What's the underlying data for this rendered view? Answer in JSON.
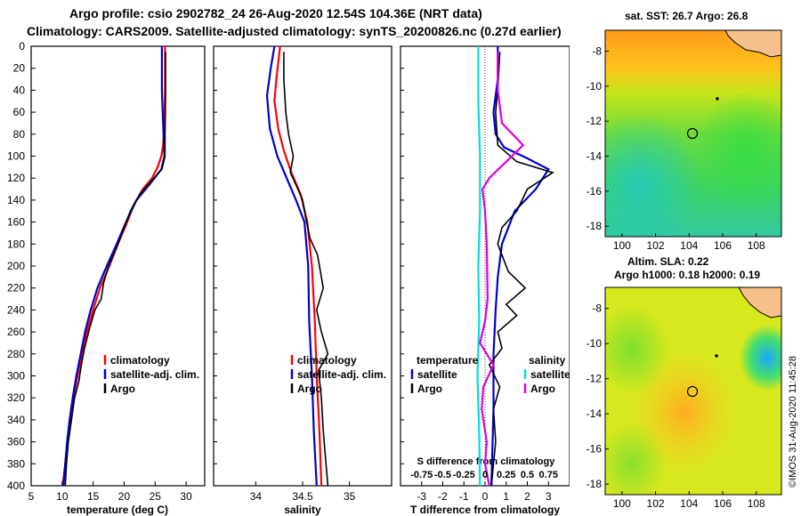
{
  "title_line1": "Argo profile: csio 2902782_24 26-Aug-2020 12.54S 104.36E (NRT data)",
  "title_line2": "Climatology: CARS2009. Satellite-adjusted climatology: synTS_20200826.nc (0.27d earlier)",
  "colors": {
    "climatology": "#ff0000",
    "satellite": "#0000cc",
    "argo": "#000000",
    "sat_diff": "#00dddd",
    "argo_sdiff": "#dd00dd"
  },
  "chart_data": [
    {
      "type": "line",
      "xlabel": "temperature (deg C)",
      "xlim": [
        5,
        33
      ],
      "ylim": [
        400,
        0
      ],
      "xticks": [
        "5",
        "10",
        "15",
        "20",
        "25",
        "30"
      ],
      "yticks": [
        "0",
        "20",
        "40",
        "60",
        "80",
        "100",
        "120",
        "140",
        "160",
        "180",
        "200",
        "220",
        "240",
        "260",
        "280",
        "300",
        "320",
        "340",
        "360",
        "380",
        "400"
      ],
      "legend": [
        "climatology",
        "satellite-adj. clim.",
        "Argo"
      ],
      "series": [
        {
          "name": "climatology",
          "points": [
            [
              26.6,
              0
            ],
            [
              26.6,
              40
            ],
            [
              26.5,
              70
            ],
            [
              26.3,
              90
            ],
            [
              26.0,
              100
            ],
            [
              25.4,
              110
            ],
            [
              24.5,
              120
            ],
            [
              23.0,
              130
            ],
            [
              21.5,
              145
            ],
            [
              20.5,
              160
            ],
            [
              19.0,
              180
            ],
            [
              17.6,
              200
            ],
            [
              16.1,
              220
            ],
            [
              15.0,
              240
            ],
            [
              14.0,
              260
            ],
            [
              13.2,
              280
            ],
            [
              12.5,
              300
            ],
            [
              11.8,
              320
            ],
            [
              11.3,
              340
            ],
            [
              10.9,
              360
            ],
            [
              10.5,
              380
            ],
            [
              10.1,
              400
            ]
          ]
        },
        {
          "name": "satellite-adj. clim.",
          "points": [
            [
              26.1,
              0
            ],
            [
              26.1,
              40
            ],
            [
              26.3,
              70
            ],
            [
              26.5,
              100
            ],
            [
              26.0,
              112
            ],
            [
              24.2,
              125
            ],
            [
              22.0,
              140
            ],
            [
              20.3,
              160
            ],
            [
              18.8,
              180
            ],
            [
              17.2,
              200
            ],
            [
              15.7,
              220
            ],
            [
              14.6,
              240
            ],
            [
              13.7,
              260
            ],
            [
              13.0,
              280
            ],
            [
              12.3,
              300
            ],
            [
              11.7,
              320
            ],
            [
              11.2,
              340
            ],
            [
              10.8,
              360
            ],
            [
              10.5,
              380
            ],
            [
              10.2,
              400
            ]
          ]
        },
        {
          "name": "Argo",
          "points": [
            [
              26.7,
              5
            ],
            [
              26.7,
              40
            ],
            [
              26.6,
              80
            ],
            [
              26.6,
              100
            ],
            [
              26.1,
              112
            ],
            [
              24.0,
              125
            ],
            [
              22.5,
              135
            ],
            [
              21.0,
              150
            ],
            [
              20.0,
              165
            ],
            [
              19.0,
              180
            ],
            [
              17.5,
              200
            ],
            [
              16.7,
              215
            ],
            [
              16.3,
              230
            ],
            [
              15.3,
              240
            ],
            [
              14.5,
              255
            ],
            [
              13.6,
              275
            ],
            [
              13.1,
              290
            ],
            [
              12.7,
              305
            ],
            [
              12.0,
              320
            ],
            [
              11.5,
              340
            ],
            [
              11.0,
              360
            ],
            [
              10.7,
              380
            ],
            [
              10.5,
              400
            ]
          ]
        }
      ]
    },
    {
      "type": "line",
      "xlabel": "salinity",
      "xlim": [
        33.55,
        35.45
      ],
      "ylim": [
        400,
        0
      ],
      "xticks": [
        "34",
        "34.5",
        "35"
      ],
      "legend": [
        "climatology",
        "satellite-adj. clim.",
        "Argo"
      ],
      "series": [
        {
          "name": "climatology",
          "points": [
            [
              34.26,
              0
            ],
            [
              34.22,
              30
            ],
            [
              34.2,
              50
            ],
            [
              34.24,
              75
            ],
            [
              34.3,
              95
            ],
            [
              34.38,
              115
            ],
            [
              34.48,
              135
            ],
            [
              34.55,
              160
            ],
            [
              34.6,
              200
            ],
            [
              34.63,
              250
            ],
            [
              34.65,
              300
            ],
            [
              34.68,
              350
            ],
            [
              34.7,
              400
            ]
          ]
        },
        {
          "name": "satellite-adj. clim.",
          "points": [
            [
              34.2,
              0
            ],
            [
              34.16,
              20
            ],
            [
              34.12,
              45
            ],
            [
              34.15,
              75
            ],
            [
              34.23,
              100
            ],
            [
              34.33,
              120
            ],
            [
              34.43,
              140
            ],
            [
              34.52,
              160
            ],
            [
              34.56,
              200
            ],
            [
              34.57,
              250
            ],
            [
              34.6,
              300
            ],
            [
              34.62,
              350
            ],
            [
              34.65,
              400
            ]
          ]
        },
        {
          "name": "Argo",
          "points": [
            [
              34.3,
              5
            ],
            [
              34.3,
              30
            ],
            [
              34.32,
              60
            ],
            [
              34.35,
              80
            ],
            [
              34.4,
              100
            ],
            [
              34.37,
              115
            ],
            [
              34.45,
              130
            ],
            [
              34.5,
              140
            ],
            [
              34.53,
              155
            ],
            [
              34.58,
              175
            ],
            [
              34.66,
              190
            ],
            [
              34.72,
              220
            ],
            [
              34.65,
              240
            ],
            [
              34.7,
              260
            ],
            [
              34.77,
              280
            ],
            [
              34.67,
              295
            ],
            [
              34.7,
              320
            ],
            [
              34.72,
              350
            ],
            [
              34.75,
              380
            ],
            [
              34.77,
              400
            ]
          ]
        }
      ]
    },
    {
      "type": "line",
      "xlabel": "T difference from climatology",
      "xlim": [
        -4,
        4
      ],
      "ylim": [
        400,
        0
      ],
      "xticks": [
        "-3",
        "-2",
        "-1",
        "0",
        "1",
        "2",
        "3"
      ],
      "top_xlabel": "S difference from climatology",
      "top_xticks": [
        "-0.75",
        "-0.5",
        "-0.25",
        "0",
        "0.25",
        "0.5",
        "0.75"
      ],
      "legend_left_title": "temperature",
      "legend_left": [
        "satellite",
        "Argo"
      ],
      "legend_right_title": "salinity",
      "legend_right": [
        "satellite",
        "Argo"
      ],
      "series": [
        {
          "name": "temperature satellite",
          "points": [
            [
              0.6,
              0
            ],
            [
              0.6,
              30
            ],
            [
              0.4,
              60
            ],
            [
              0.5,
              80
            ],
            [
              0.9,
              92
            ],
            [
              2.0,
              102
            ],
            [
              3.0,
              112
            ],
            [
              2.4,
              130
            ],
            [
              1.4,
              150
            ],
            [
              0.8,
              180
            ],
            [
              0.6,
              210
            ],
            [
              0.5,
              240
            ],
            [
              0.4,
              280
            ],
            [
              0.4,
              330
            ],
            [
              0.3,
              400
            ]
          ]
        },
        {
          "name": "temperature Argo",
          "points": [
            [
              0.7,
              5
            ],
            [
              0.6,
              40
            ],
            [
              0.5,
              60
            ],
            [
              0.6,
              90
            ],
            [
              1.5,
              105
            ],
            [
              3.2,
              115
            ],
            [
              2.0,
              130
            ],
            [
              1.5,
              150
            ],
            [
              0.8,
              165
            ],
            [
              0.6,
              180
            ],
            [
              1.1,
              205
            ],
            [
              1.9,
              220
            ],
            [
              1.0,
              235
            ],
            [
              1.5,
              245
            ],
            [
              0.6,
              260
            ],
            [
              0.8,
              275
            ],
            [
              0.2,
              290
            ],
            [
              0.7,
              310
            ],
            [
              0.4,
              330
            ],
            [
              0.5,
              360
            ],
            [
              0.3,
              400
            ]
          ]
        },
        {
          "name": "salinity satellite",
          "points": [
            [
              -0.08,
              0
            ],
            [
              -0.08,
              50
            ],
            [
              -0.06,
              100
            ],
            [
              -0.06,
              150
            ],
            [
              -0.08,
              200
            ],
            [
              -0.07,
              250
            ],
            [
              -0.09,
              300
            ],
            [
              -0.07,
              350
            ],
            [
              -0.06,
              400
            ]
          ]
        },
        {
          "name": "salinity Argo",
          "points": [
            [
              0.15,
              5
            ],
            [
              0.15,
              40
            ],
            [
              0.2,
              70
            ],
            [
              0.45,
              90
            ],
            [
              0.25,
              105
            ],
            [
              0.05,
              120
            ],
            [
              -0.03,
              130
            ],
            [
              0.0,
              150
            ],
            [
              0.02,
              180
            ],
            [
              0.03,
              230
            ],
            [
              0.0,
              250
            ],
            [
              -0.06,
              270
            ],
            [
              0.1,
              290
            ],
            [
              -0.02,
              310
            ],
            [
              -0.04,
              330
            ],
            [
              0.02,
              360
            ],
            [
              0.0,
              380
            ],
            [
              0.05,
              400
            ]
          ]
        }
      ]
    }
  ],
  "maps": [
    {
      "title": "sat. SST: 26.7 Argo: 26.8",
      "xticks": [
        "100",
        "102",
        "104",
        "106",
        "108"
      ],
      "yticks": [
        "-8",
        "-10",
        "-12",
        "-14",
        "-16",
        "-18"
      ]
    },
    {
      "title_line1": "Altim. SLA: 0.22",
      "title_line2": "Argo h1000: 0.18 h2000: 0.19",
      "xticks": [
        "100",
        "102",
        "104",
        "106",
        "108"
      ],
      "yticks": [
        "-8",
        "-10",
        "-12",
        "-14",
        "-16",
        "-18"
      ]
    }
  ],
  "credit": "©IMOS 31-Aug-2020 11:45:28"
}
